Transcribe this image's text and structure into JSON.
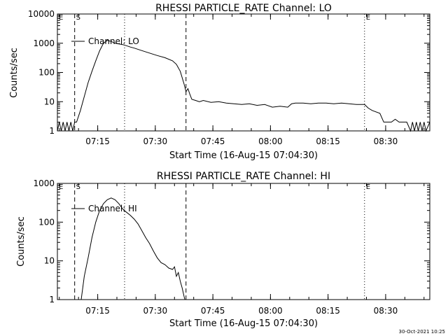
{
  "footer": {
    "timestamp": "30-Oct-2021 10:25"
  },
  "chart_data": [
    {
      "type": "line",
      "title": "RHESSI PARTICLE_RATE Channel: LO",
      "xlabel": "Start Time (16-Aug-15 07:04:30)",
      "ylabel": "Counts/sec",
      "yscale": "log",
      "ylim": [
        1,
        10000
      ],
      "xlim_minutes": [
        0,
        97
      ],
      "x_ticks": [
        "07:15",
        "07:30",
        "07:45",
        "08:00",
        "08:15",
        "08:30"
      ],
      "y_ticks": [
        "1",
        "10",
        "100",
        "1000",
        "10000"
      ],
      "legend": "Channel: LO",
      "legend_position": "top-left",
      "flags": [
        {
          "label": "E",
          "x_min": 0
        },
        {
          "label": "S",
          "x_min": 4.5
        },
        {
          "label": "E",
          "x_min": 80
        }
      ],
      "dashed_lines_min": [
        4.5,
        33.5
      ],
      "dotted_lines_min": [
        17.5,
        80,
        97
      ],
      "series": [
        {
          "points": [
            [
              0,
              1
            ],
            [
              0.5,
              2
            ],
            [
              1,
              1
            ],
            [
              1.5,
              2
            ],
            [
              2,
              1
            ],
            [
              2.5,
              2
            ],
            [
              3,
              1
            ],
            [
              3.5,
              2
            ],
            [
              4,
              1
            ],
            [
              4.5,
              2
            ],
            [
              5,
              2
            ],
            [
              6,
              5
            ],
            [
              7,
              15
            ],
            [
              8,
              45
            ],
            [
              9,
              110
            ],
            [
              10,
              250
            ],
            [
              11,
              550
            ],
            [
              12,
              1000
            ],
            [
              13,
              1250
            ],
            [
              14,
              1150
            ],
            [
              15,
              1000
            ],
            [
              16,
              950
            ],
            [
              17,
              900
            ],
            [
              18,
              820
            ],
            [
              19,
              740
            ],
            [
              20,
              680
            ],
            [
              22,
              560
            ],
            [
              24,
              460
            ],
            [
              26,
              380
            ],
            [
              28,
              320
            ],
            [
              30,
              250
            ],
            [
              31,
              190
            ],
            [
              32,
              110
            ],
            [
              33,
              40
            ],
            [
              33.5,
              22
            ],
            [
              34,
              28
            ],
            [
              34.5,
              18
            ],
            [
              35,
              12
            ],
            [
              36,
              11
            ],
            [
              37,
              10
            ],
            [
              38,
              11
            ],
            [
              40,
              9.5
            ],
            [
              42,
              10
            ],
            [
              44,
              9
            ],
            [
              46,
              8.5
            ],
            [
              48,
              8
            ],
            [
              50,
              8.5
            ],
            [
              52,
              7.5
            ],
            [
              54,
              8
            ],
            [
              56,
              6.5
            ],
            [
              58,
              7
            ],
            [
              60,
              6.5
            ],
            [
              61,
              8.5
            ],
            [
              62,
              9
            ],
            [
              64,
              9
            ],
            [
              66,
              8.5
            ],
            [
              68,
              9
            ],
            [
              70,
              9
            ],
            [
              72,
              8.5
            ],
            [
              74,
              9
            ],
            [
              76,
              8.5
            ],
            [
              78,
              8
            ],
            [
              80,
              8
            ],
            [
              81,
              6
            ],
            [
              82,
              5
            ],
            [
              84,
              4
            ],
            [
              85,
              2
            ],
            [
              86,
              2
            ],
            [
              87,
              2
            ],
            [
              88,
              2.5
            ],
            [
              89,
              2
            ],
            [
              90,
              2
            ],
            [
              91,
              2
            ],
            [
              92,
              1
            ],
            [
              92.5,
              2
            ],
            [
              93,
              1
            ],
            [
              93.5,
              2
            ],
            [
              94,
              1
            ],
            [
              94.5,
              2
            ],
            [
              95,
              1
            ],
            [
              95.5,
              2
            ],
            [
              96,
              1
            ],
            [
              97,
              2
            ]
          ]
        }
      ]
    },
    {
      "type": "line",
      "title": "RHESSI PARTICLE_RATE Channel: HI",
      "xlabel": "Start Time (16-Aug-15 07:04:30)",
      "ylabel": "Counts/sec",
      "yscale": "log",
      "ylim": [
        1,
        1000
      ],
      "xlim_minutes": [
        0,
        97
      ],
      "x_ticks": [
        "07:15",
        "07:30",
        "07:45",
        "08:00",
        "08:15",
        "08:30"
      ],
      "y_ticks": [
        "1",
        "10",
        "100",
        "1000"
      ],
      "legend": "Channel: HI",
      "legend_position": "top-left",
      "flags": [
        {
          "label": "E",
          "x_min": 0
        },
        {
          "label": "S",
          "x_min": 4.5
        },
        {
          "label": "E",
          "x_min": 80
        }
      ],
      "dashed_lines_min": [
        4.5,
        33.5
      ],
      "dotted_lines_min": [
        17.5,
        80,
        97
      ],
      "series": [
        {
          "points": [
            [
              6.2,
              1
            ],
            [
              7,
              4
            ],
            [
              8,
              12
            ],
            [
              9,
              40
            ],
            [
              10,
              100
            ],
            [
              11,
              200
            ],
            [
              12,
              300
            ],
            [
              13,
              380
            ],
            [
              14,
              420
            ],
            [
              15,
              380
            ],
            [
              16,
              300
            ],
            [
              17,
              220
            ],
            [
              18,
              180
            ],
            [
              19,
              150
            ],
            [
              20,
              120
            ],
            [
              21,
              90
            ],
            [
              22,
              60
            ],
            [
              23,
              40
            ],
            [
              24,
              28
            ],
            [
              25,
              18
            ],
            [
              26,
              12
            ],
            [
              27,
              9
            ],
            [
              28,
              8
            ],
            [
              29,
              6.5
            ],
            [
              30,
              6
            ],
            [
              30.5,
              7
            ],
            [
              31,
              4
            ],
            [
              31.5,
              5
            ],
            [
              32,
              3
            ],
            [
              32.5,
              2
            ],
            [
              33,
              1.2
            ],
            [
              33.2,
              1
            ]
          ]
        }
      ]
    }
  ]
}
